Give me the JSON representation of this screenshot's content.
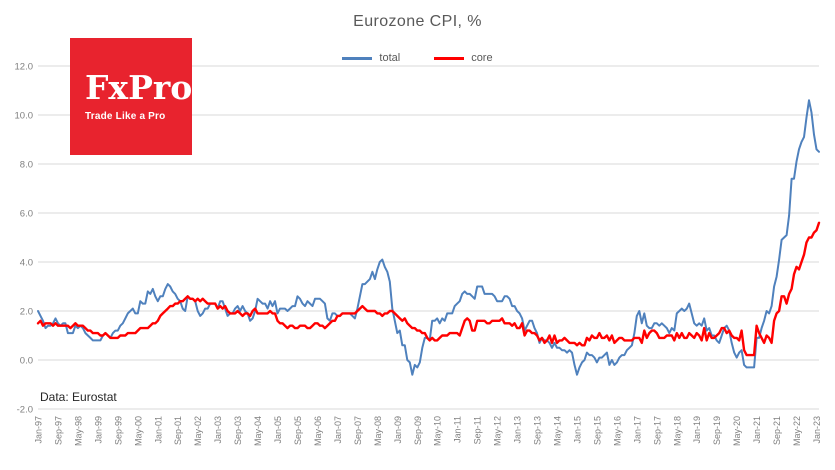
{
  "header": {
    "title": "Eurozone CPI, %"
  },
  "legend": {
    "items": [
      {
        "label": "total",
        "color": "#4f81bd"
      },
      {
        "label": "core",
        "color": "#ff0000"
      }
    ]
  },
  "logo": {
    "brand": "FxPro",
    "tagline": "Trade Like a Pro",
    "bg_color": "#e8232e"
  },
  "footer": {
    "source": "Data: Eurostat"
  },
  "colors": {
    "title_text": "#595959",
    "axis_text": "#7f7f7f",
    "gridline": "#d9d9d9",
    "background": "#ffffff"
  },
  "chart_data": {
    "type": "line",
    "title": "Eurozone CPI, %",
    "xlabel": "",
    "ylabel": "",
    "x_start": "Jan-1997",
    "x_end": "Feb-2023",
    "x_frequency": "monthly",
    "ylim": [
      -2,
      12
    ],
    "ytick_step": 2,
    "ytick_labels": [
      "12.0",
      "10.0",
      "8.0",
      "6.0",
      "4.0",
      "2.0",
      "0.0",
      "-2.0"
    ],
    "grid": true,
    "legend_position": "top",
    "xtick_every": 8,
    "xtick_labels": [
      "Jan-97",
      "Sep-97",
      "May-98",
      "Jan-99",
      "Sep-99",
      "May-00",
      "Jan-01",
      "Sep-01",
      "May-02",
      "Jan-03",
      "Sep-03",
      "May-04",
      "Jan-05",
      "Sep-05",
      "May-06",
      "Jan-07",
      "Sep-07",
      "May-08",
      "Jan-09",
      "Sep-09",
      "May-10",
      "Jan-11",
      "Sep-11",
      "May-12",
      "Jan-13",
      "Sep-13",
      "May-14",
      "Jan-15",
      "Sep-15",
      "May-16",
      "Jan-17",
      "Sep-17",
      "May-18",
      "Jan-19",
      "Sep-19",
      "May-20",
      "Jan-21",
      "Sep-21",
      "May-22",
      "Jan-23"
    ],
    "series": [
      {
        "name": "total",
        "color": "#4f81bd",
        "values": [
          2.0,
          1.8,
          1.6,
          1.3,
          1.4,
          1.4,
          1.5,
          1.7,
          1.5,
          1.4,
          1.5,
          1.5,
          1.1,
          1.1,
          1.1,
          1.4,
          1.3,
          1.4,
          1.3,
          1.1,
          1.0,
          0.9,
          0.8,
          0.8,
          0.8,
          0.8,
          1.0,
          1.1,
          1.0,
          0.9,
          1.1,
          1.2,
          1.2,
          1.4,
          1.5,
          1.7,
          1.9,
          2.0,
          2.1,
          1.9,
          1.9,
          2.4,
          2.3,
          2.3,
          2.8,
          2.7,
          2.9,
          2.6,
          2.4,
          2.6,
          2.6,
          2.9,
          3.1,
          3.0,
          2.8,
          2.7,
          2.5,
          2.4,
          2.1,
          2.0,
          2.6,
          2.5,
          2.5,
          2.4,
          2.0,
          1.8,
          1.9,
          2.1,
          2.1,
          2.3,
          2.3,
          2.3,
          2.1,
          2.4,
          2.4,
          2.1,
          1.8,
          1.9,
          1.9,
          2.1,
          2.2,
          2.0,
          2.2,
          2.0,
          1.9,
          1.6,
          1.7,
          2.0,
          2.5,
          2.4,
          2.3,
          2.3,
          2.1,
          2.4,
          2.2,
          2.4,
          1.9,
          2.1,
          2.1,
          2.1,
          2.0,
          2.1,
          2.2,
          2.2,
          2.6,
          2.5,
          2.3,
          2.2,
          2.4,
          2.3,
          2.2,
          2.5,
          2.5,
          2.5,
          2.4,
          2.3,
          1.7,
          1.6,
          1.9,
          1.9,
          1.8,
          1.8,
          1.9,
          1.9,
          1.9,
          1.9,
          1.8,
          1.7,
          2.1,
          2.6,
          3.1,
          3.1,
          3.2,
          3.3,
          3.6,
          3.3,
          3.7,
          4.0,
          4.1,
          3.8,
          3.6,
          3.2,
          2.1,
          1.6,
          1.1,
          1.2,
          0.6,
          0.6,
          0.0,
          -0.1,
          -0.6,
          -0.2,
          -0.3,
          -0.1,
          0.5,
          0.9,
          0.9,
          0.8,
          1.6,
          1.6,
          1.7,
          1.5,
          1.7,
          1.6,
          1.9,
          1.9,
          1.9,
          2.2,
          2.3,
          2.4,
          2.7,
          2.8,
          2.7,
          2.7,
          2.6,
          2.5,
          3.0,
          3.0,
          3.0,
          2.7,
          2.7,
          2.7,
          2.7,
          2.6,
          2.4,
          2.4,
          2.4,
          2.6,
          2.6,
          2.5,
          2.2,
          2.2,
          2.0,
          1.9,
          1.7,
          1.2,
          1.4,
          1.6,
          1.6,
          1.3,
          1.1,
          0.7,
          0.9,
          0.8,
          0.8,
          0.7,
          0.5,
          0.7,
          0.5,
          0.5,
          0.4,
          0.4,
          0.3,
          0.4,
          0.3,
          -0.2,
          -0.6,
          -0.3,
          -0.1,
          0.0,
          0.3,
          0.2,
          0.2,
          0.1,
          -0.1,
          0.1,
          0.1,
          0.2,
          0.3,
          -0.2,
          0.0,
          -0.2,
          -0.1,
          0.1,
          0.2,
          0.2,
          0.4,
          0.5,
          0.6,
          1.1,
          1.8,
          2.0,
          1.5,
          1.9,
          1.4,
          1.3,
          1.3,
          1.5,
          1.5,
          1.4,
          1.5,
          1.4,
          1.3,
          1.1,
          1.3,
          1.2,
          1.9,
          2.0,
          2.1,
          2.0,
          2.1,
          2.3,
          1.9,
          1.5,
          1.4,
          1.5,
          1.4,
          1.7,
          1.2,
          1.3,
          1.0,
          1.0,
          0.8,
          0.7,
          1.0,
          1.3,
          1.4,
          1.2,
          0.7,
          0.3,
          0.1,
          0.3,
          0.4,
          -0.2,
          -0.3,
          -0.3,
          -0.3,
          -0.3,
          0.9,
          0.9,
          1.3,
          1.6,
          2.0,
          1.9,
          2.2,
          3.0,
          3.4,
          4.1,
          4.9,
          5.0,
          5.1,
          5.9,
          7.4,
          7.4,
          8.1,
          8.6,
          8.9,
          9.1,
          9.9,
          10.6,
          10.1,
          9.2,
          8.6,
          8.5
        ]
      },
      {
        "name": "core",
        "color": "#ff0000",
        "values": [
          1.5,
          1.6,
          1.4,
          1.5,
          1.5,
          1.5,
          1.4,
          1.5,
          1.4,
          1.4,
          1.4,
          1.4,
          1.4,
          1.3,
          1.4,
          1.5,
          1.4,
          1.4,
          1.4,
          1.3,
          1.2,
          1.2,
          1.1,
          1.1,
          1.1,
          1.0,
          1.0,
          1.1,
          1.0,
          0.9,
          0.9,
          0.9,
          0.9,
          1.0,
          1.0,
          1.0,
          1.1,
          1.1,
          1.1,
          1.1,
          1.2,
          1.3,
          1.3,
          1.3,
          1.3,
          1.4,
          1.5,
          1.5,
          1.6,
          1.8,
          1.9,
          2.0,
          2.1,
          2.2,
          2.2,
          2.3,
          2.3,
          2.4,
          2.4,
          2.5,
          2.6,
          2.5,
          2.5,
          2.4,
          2.5,
          2.4,
          2.5,
          2.4,
          2.3,
          2.3,
          2.3,
          2.3,
          2.1,
          2.2,
          2.1,
          2.2,
          2.0,
          1.9,
          1.9,
          1.9,
          2.0,
          1.9,
          1.8,
          1.9,
          1.9,
          1.8,
          2.0,
          2.1,
          1.9,
          1.9,
          1.9,
          1.9,
          1.9,
          2.0,
          1.9,
          1.9,
          1.6,
          1.5,
          1.5,
          1.4,
          1.3,
          1.4,
          1.4,
          1.3,
          1.3,
          1.4,
          1.4,
          1.4,
          1.3,
          1.3,
          1.4,
          1.5,
          1.5,
          1.4,
          1.4,
          1.3,
          1.4,
          1.5,
          1.6,
          1.6,
          1.8,
          1.8,
          1.9,
          1.9,
          1.9,
          1.9,
          1.9,
          1.9,
          2.0,
          2.1,
          2.2,
          2.1,
          2.0,
          2.0,
          2.0,
          2.0,
          1.9,
          1.9,
          1.8,
          1.9,
          1.9,
          2.0,
          2.0,
          1.9,
          1.8,
          1.7,
          1.6,
          1.7,
          1.5,
          1.4,
          1.3,
          1.3,
          1.2,
          1.2,
          1.1,
          1.1,
          0.9,
          0.8,
          0.9,
          0.8,
          0.8,
          0.9,
          1.0,
          1.0,
          1.0,
          1.1,
          1.1,
          1.1,
          1.1,
          1.0,
          1.3,
          1.6,
          1.7,
          1.6,
          1.2,
          1.2,
          1.6,
          1.6,
          1.6,
          1.6,
          1.5,
          1.5,
          1.6,
          1.6,
          1.6,
          1.6,
          1.7,
          1.5,
          1.5,
          1.5,
          1.4,
          1.5,
          1.3,
          1.3,
          1.5,
          1.0,
          1.2,
          1.2,
          1.1,
          1.1,
          1.0,
          0.8,
          0.9,
          0.7,
          0.8,
          1.0,
          0.7,
          1.0,
          0.7,
          0.8,
          0.8,
          0.9,
          0.8,
          0.7,
          0.7,
          0.7,
          0.6,
          0.7,
          0.6,
          0.6,
          0.9,
          0.8,
          1.0,
          0.9,
          0.9,
          1.1,
          0.9,
          0.9,
          1.0,
          0.8,
          1.0,
          0.7,
          0.8,
          0.9,
          0.9,
          0.8,
          0.8,
          0.8,
          0.8,
          0.9,
          0.9,
          0.9,
          0.7,
          1.2,
          0.9,
          1.1,
          1.2,
          1.2,
          1.1,
          0.9,
          0.9,
          0.9,
          1.0,
          1.0,
          1.0,
          0.8,
          1.1,
          0.9,
          1.1,
          0.9,
          0.9,
          1.1,
          1.0,
          0.9,
          1.1,
          1.0,
          0.8,
          1.3,
          0.8,
          1.1,
          0.9,
          0.9,
          1.0,
          1.1,
          1.3,
          1.3,
          1.1,
          1.2,
          1.0,
          0.9,
          0.9,
          0.8,
          1.2,
          0.4,
          0.2,
          0.2,
          0.2,
          0.2,
          1.4,
          1.1,
          0.9,
          0.7,
          1.0,
          0.9,
          0.7,
          1.6,
          1.9,
          2.0,
          2.6,
          2.6,
          2.3,
          2.7,
          2.9,
          3.5,
          3.8,
          3.7,
          4.0,
          4.3,
          4.8,
          5.0,
          5.0,
          5.2,
          5.3,
          5.6
        ]
      }
    ]
  }
}
